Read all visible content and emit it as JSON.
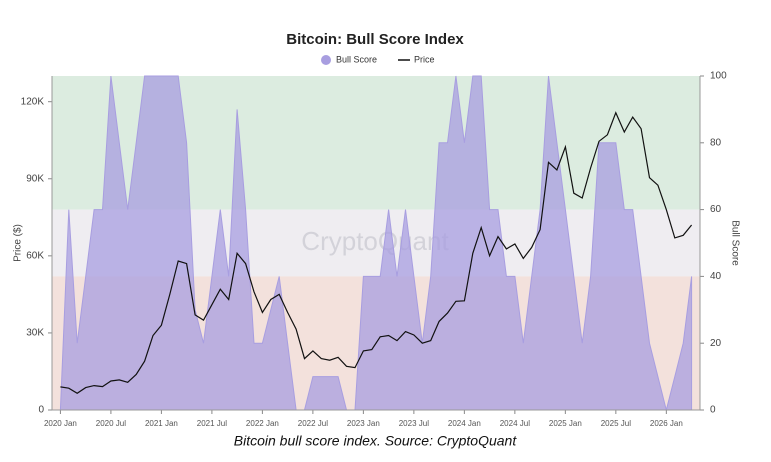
{
  "chart_data": {
    "type": "dual-axis",
    "title": "Bitcoin: Bull Score Index",
    "caption": "Bitcoin bull score index. Source: CryptoQuant",
    "watermark": "CryptoQuant",
    "y_label": "Price ($)",
    "y2_label": "Bull Score",
    "x": [
      "2020-01",
      "2020-02",
      "2020-03",
      "2020-04",
      "2020-05",
      "2020-06",
      "2020-07",
      "2020-08",
      "2020-09",
      "2020-10",
      "2020-11",
      "2020-12",
      "2021-01",
      "2021-02",
      "2021-03",
      "2021-04",
      "2021-05",
      "2021-06",
      "2021-07",
      "2021-08",
      "2021-09",
      "2021-10",
      "2021-11",
      "2021-12",
      "2022-01",
      "2022-02",
      "2022-03",
      "2022-04",
      "2022-05",
      "2022-06",
      "2022-07",
      "2022-08",
      "2022-09",
      "2022-10",
      "2022-11",
      "2022-12",
      "2023-01",
      "2023-02",
      "2023-03",
      "2023-04",
      "2023-05",
      "2023-06",
      "2023-07",
      "2023-08",
      "2023-09",
      "2023-10",
      "2023-11",
      "2023-12",
      "2024-01",
      "2024-02",
      "2024-03",
      "2024-04",
      "2024-05",
      "2024-06",
      "2024-07",
      "2024-08",
      "2024-09",
      "2024-10",
      "2024-11",
      "2024-12",
      "2025-01",
      "2025-02",
      "2025-03",
      "2025-04",
      "2025-05",
      "2025-06",
      "2025-07",
      "2025-08",
      "2025-09",
      "2025-10",
      "2025-11",
      "2025-12",
      "2026-01",
      "2026-02",
      "2026-03",
      "2026-04"
    ],
    "series": [
      {
        "name": "Bull Score",
        "color": "#a89ee0",
        "axis": "y2",
        "style": "area",
        "values": [
          0,
          60,
          20,
          40,
          60,
          60,
          100,
          80,
          60,
          80,
          100,
          100,
          100,
          100,
          100,
          80,
          30,
          20,
          40,
          60,
          40,
          90,
          60,
          20,
          20,
          30,
          40,
          20,
          0,
          0,
          10,
          10,
          10,
          10,
          0,
          0,
          40,
          40,
          40,
          60,
          40,
          60,
          40,
          20,
          40,
          80,
          80,
          100,
          80,
          100,
          100,
          60,
          60,
          40,
          40,
          20,
          40,
          60,
          100,
          80,
          60,
          40,
          20,
          40,
          80,
          80,
          80,
          60,
          60,
          40,
          20,
          10,
          0,
          10,
          20,
          40
        ]
      },
      {
        "name": "Price",
        "color": "#111111",
        "axis": "y",
        "style": "line",
        "values": [
          9000,
          8500,
          6500,
          8700,
          9500,
          9100,
          11300,
          11700,
          10800,
          13800,
          19000,
          29000,
          33000,
          45000,
          58000,
          57000,
          37000,
          35000,
          41000,
          47000,
          43000,
          61000,
          57000,
          46000,
          38000,
          43000,
          45000,
          38000,
          31500,
          20000,
          23000,
          20000,
          19400,
          20500,
          17000,
          16500,
          23000,
          23500,
          28500,
          29000,
          27000,
          30500,
          29200,
          26000,
          27000,
          34500,
          37700,
          42300,
          42500,
          61000,
          71000,
          60000,
          67500,
          62700,
          64600,
          59000,
          63300,
          70200,
          96400,
          93400,
          102400,
          84400,
          82500,
          94200,
          104600,
          107100,
          115700,
          108200,
          114000,
          109500,
          90400,
          87500,
          78000,
          67000,
          68000,
          72000
        ]
      }
    ],
    "bands": [
      {
        "from": 60,
        "to": 100,
        "color": "#dcece0"
      },
      {
        "from": 40,
        "to": 60,
        "color": "#efedf1"
      },
      {
        "from": 0,
        "to": 40,
        "color": "#f3e1dc"
      }
    ],
    "xlim": [
      "2019-12",
      "2026-05"
    ],
    "xticks": [
      {
        "value": "2020-01",
        "label": "2020 Jan"
      },
      {
        "value": "2020-07",
        "label": "2020 Jul"
      },
      {
        "value": "2021-01",
        "label": "2021 Jan"
      },
      {
        "value": "2021-07",
        "label": "2021 Jul"
      },
      {
        "value": "2022-01",
        "label": "2022 Jan"
      },
      {
        "value": "2022-07",
        "label": "2022 Jul"
      },
      {
        "value": "2023-01",
        "label": "2023 Jan"
      },
      {
        "value": "2023-07",
        "label": "2023 Jul"
      },
      {
        "value": "2024-01",
        "label": "2024 Jan"
      },
      {
        "value": "2024-07",
        "label": "2024 Jul"
      },
      {
        "value": "2025-01",
        "label": "2025 Jan"
      },
      {
        "value": "2025-07",
        "label": "2025 Jul"
      },
      {
        "value": "2026-01",
        "label": "2026 Jan"
      }
    ],
    "ylim": [
      0,
      130000
    ],
    "yticks": [
      0,
      {
        "value": 30000,
        "label": "30K"
      },
      {
        "value": 60000,
        "label": "60K"
      },
      {
        "value": 90000,
        "label": "90K"
      },
      {
        "value": 120000,
        "label": "120K"
      }
    ],
    "y2lim": [
      0,
      100
    ],
    "y2ticks": [
      0,
      20,
      40,
      60,
      80,
      100
    ],
    "legend": "top"
  }
}
